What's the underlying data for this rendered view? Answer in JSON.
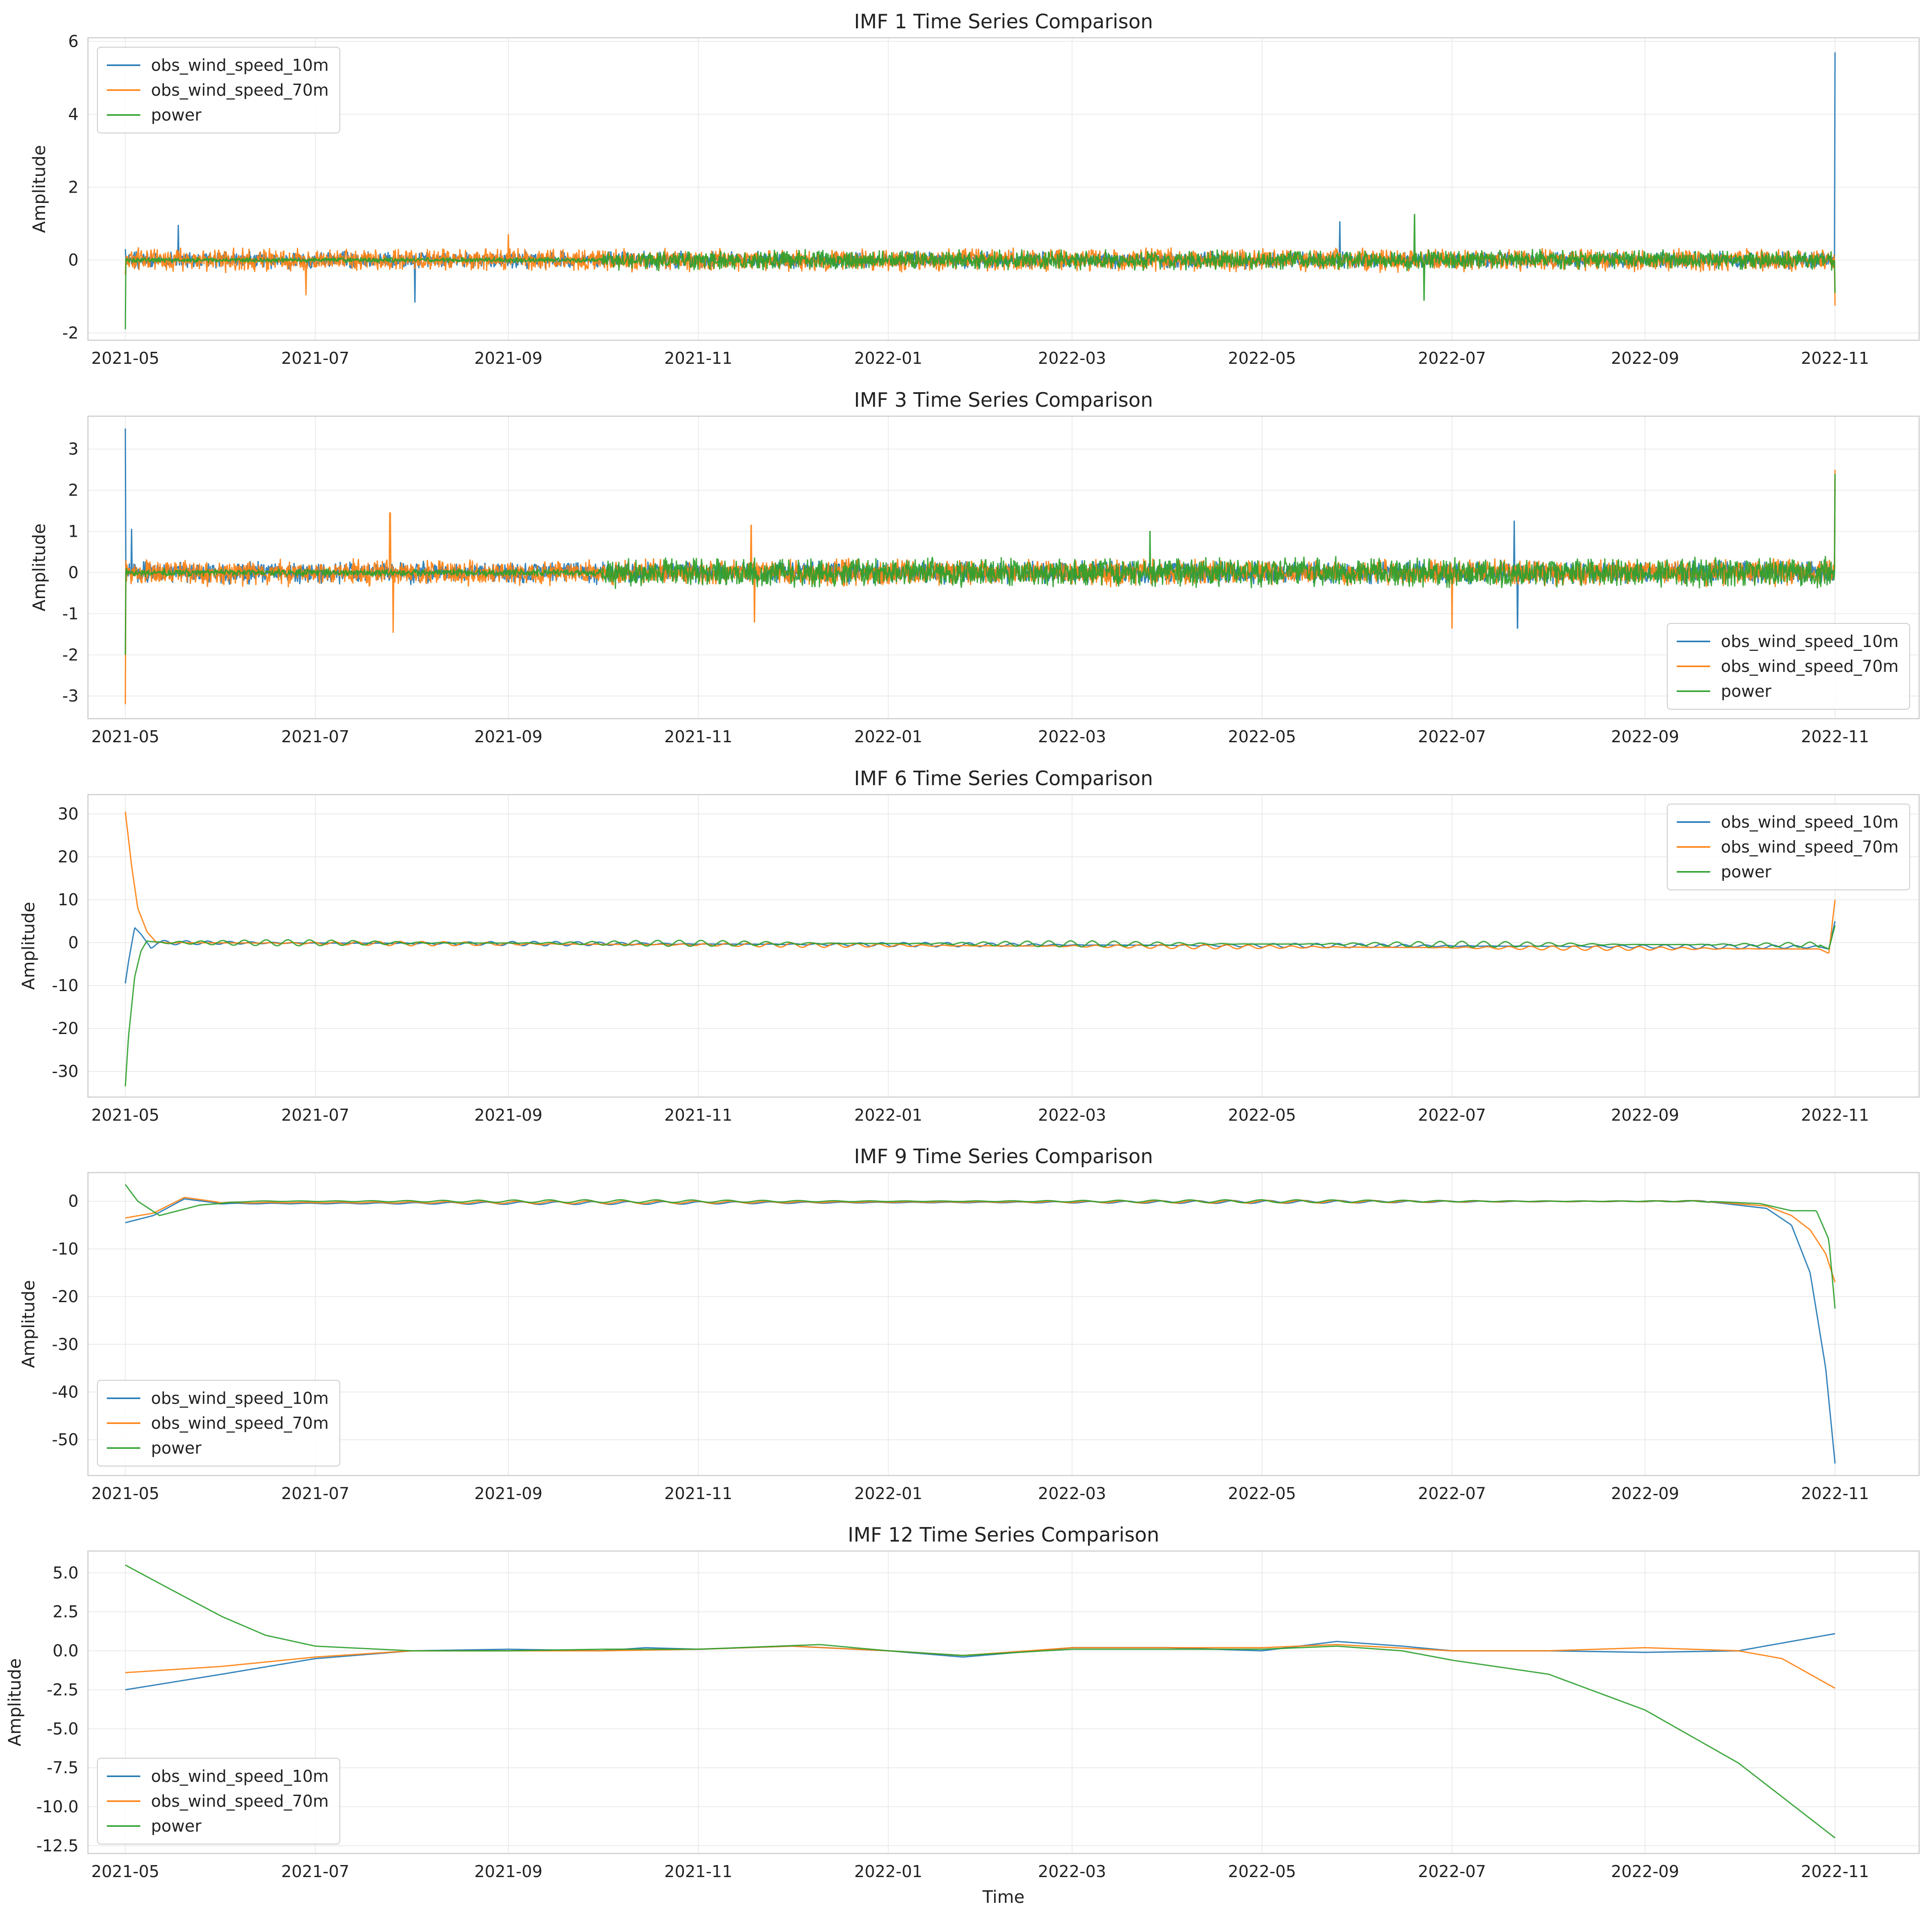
{
  "colors": {
    "obs_wind_speed_10m": "#1f77b4",
    "obs_wind_speed_70m": "#ff7f0e",
    "power": "#2ca02c",
    "grid": "#ebebeb",
    "axes": "#cccccc"
  },
  "x_ticks": [
    "2021-05",
    "2021-07",
    "2021-09",
    "2021-11",
    "2022-01",
    "2022-03",
    "2022-05",
    "2022-07",
    "2022-09",
    "2022-11"
  ],
  "x_label": "Time",
  "chart_data": [
    {
      "type": "line",
      "title": "IMF 1 Time Series Comparison",
      "ylabel": "Amplitude",
      "xlim": [
        "2021-04-19",
        "2022-11-28"
      ],
      "ylim": [
        -2.2,
        6.1
      ],
      "yticks": [
        -2,
        0,
        2,
        4,
        6
      ],
      "ytick_labels": [
        "-2",
        "0",
        "2",
        "4",
        "6"
      ],
      "grid": true,
      "legend": "upper left",
      "style": "noise",
      "series": [
        {
          "name": "obs_wind_speed_10m",
          "amplitude": 0.25,
          "keypoints": [
            [
              "2021-05-01",
              0.3
            ],
            [
              "2021-05-18",
              0.95
            ],
            [
              "2021-08-02",
              -1.15
            ],
            [
              "2022-05-26",
              1.05
            ],
            [
              "2022-11-01",
              5.7
            ]
          ]
        },
        {
          "name": "obs_wind_speed_70m",
          "amplitude": 0.35,
          "keypoints": [
            [
              "2021-05-01",
              -0.4
            ],
            [
              "2021-06-28",
              -0.95
            ],
            [
              "2021-09-01",
              0.7
            ],
            [
              "2022-11-01",
              -1.25
            ]
          ]
        },
        {
          "name": "power",
          "amplitude": 0.3,
          "start": "2021-10-01",
          "keypoints": [
            [
              "2021-05-01",
              -1.9
            ],
            [
              "2022-06-19",
              1.25
            ],
            [
              "2022-06-22",
              -1.1
            ],
            [
              "2022-11-01",
              -0.9
            ]
          ]
        }
      ]
    },
    {
      "type": "line",
      "title": "IMF 3 Time Series Comparison",
      "ylabel": "Amplitude",
      "xlim": [
        "2021-04-19",
        "2022-11-28"
      ],
      "ylim": [
        -3.55,
        3.8
      ],
      "yticks": [
        -3,
        -2,
        -1,
        0,
        1,
        2,
        3
      ],
      "ytick_labels": [
        "-3",
        "-2",
        "-1",
        "0",
        "1",
        "2",
        "3"
      ],
      "grid": true,
      "legend": "lower right",
      "style": "noise",
      "series": [
        {
          "name": "obs_wind_speed_10m",
          "amplitude": 0.3,
          "keypoints": [
            [
              "2021-05-01",
              3.5
            ],
            [
              "2021-05-03",
              1.05
            ],
            [
              "2022-07-21",
              1.25
            ],
            [
              "2022-07-22",
              -1.35
            ],
            [
              "2022-11-01",
              2.4
            ]
          ]
        },
        {
          "name": "obs_wind_speed_70m",
          "amplitude": 0.35,
          "keypoints": [
            [
              "2021-05-01",
              -3.2
            ],
            [
              "2021-07-25",
              1.45
            ],
            [
              "2021-07-26",
              -1.45
            ],
            [
              "2021-11-18",
              1.15
            ],
            [
              "2021-11-19",
              -1.2
            ],
            [
              "2022-07-01",
              -1.35
            ],
            [
              "2022-11-01",
              2.5
            ]
          ]
        },
        {
          "name": "power",
          "amplitude": 0.4,
          "start": "2021-10-01",
          "keypoints": [
            [
              "2021-05-01",
              -2.0
            ],
            [
              "2022-03-26",
              1.0
            ],
            [
              "2022-11-01",
              2.4
            ]
          ]
        }
      ]
    },
    {
      "type": "line",
      "title": "IMF 6 Time Series Comparison",
      "ylabel": "Amplitude",
      "xlim": [
        "2021-04-19",
        "2022-11-28"
      ],
      "ylim": [
        -36,
        34.5
      ],
      "yticks": [
        -30,
        -20,
        -10,
        0,
        10,
        20,
        30
      ],
      "ytick_labels": [
        "-30",
        "-20",
        "-10",
        "0",
        "10",
        "20",
        "30"
      ],
      "grid": true,
      "legend": "upper right",
      "style": "wave",
      "series": [
        {
          "name": "obs_wind_speed_10m",
          "amplitude": 0.5,
          "keypoints": [
            [
              "2021-05-01",
              -9.5
            ],
            [
              "2021-05-02",
              -4.5
            ],
            [
              "2021-05-04",
              3.5
            ],
            [
              "2021-05-06",
              2.0
            ],
            [
              "2021-05-09",
              -1.0
            ],
            [
              "2021-05-11",
              0.0
            ],
            [
              "2022-10-27",
              -1.0
            ],
            [
              "2022-10-30",
              -1.5
            ],
            [
              "2022-11-01",
              5.0
            ]
          ]
        },
        {
          "name": "obs_wind_speed_70m",
          "amplitude": 0.5,
          "keypoints": [
            [
              "2021-05-01",
              30.5
            ],
            [
              "2021-05-03",
              18.0
            ],
            [
              "2021-05-05",
              8.0
            ],
            [
              "2021-05-08",
              2.5
            ],
            [
              "2021-05-11",
              0.0
            ],
            [
              "2022-10-27",
              -1.5
            ],
            [
              "2022-10-30",
              -2.5
            ],
            [
              "2022-11-01",
              10.0
            ]
          ]
        },
        {
          "name": "power",
          "amplitude": 0.7,
          "keypoints": [
            [
              "2021-05-01",
              -33.5
            ],
            [
              "2021-05-02",
              -22.0
            ],
            [
              "2021-05-04",
              -8.0
            ],
            [
              "2021-05-06",
              -2.0
            ],
            [
              "2021-05-08",
              0.5
            ],
            [
              "2021-05-11",
              0.0
            ],
            [
              "2022-10-27",
              -0.5
            ],
            [
              "2022-10-30",
              -1.5
            ],
            [
              "2022-11-01",
              4.0
            ]
          ]
        }
      ]
    },
    {
      "type": "line",
      "title": "IMF 9 Time Series Comparison",
      "ylabel": "Amplitude",
      "xlim": [
        "2021-04-19",
        "2022-11-28"
      ],
      "ylim": [
        -57.5,
        6
      ],
      "yticks": [
        -50,
        -40,
        -30,
        -20,
        -10,
        0
      ],
      "ytick_labels": [
        "-50",
        "-40",
        "-30",
        "-20",
        "-10",
        "0"
      ],
      "grid": true,
      "legend": "lower left",
      "style": "smooth",
      "series": [
        {
          "name": "obs_wind_speed_10m",
          "amplitude": 0.3,
          "keypoints": [
            [
              "2021-05-01",
              -4.5
            ],
            [
              "2021-05-10",
              -3.0
            ],
            [
              "2021-05-20",
              0.5
            ],
            [
              "2021-06-01",
              -0.5
            ],
            [
              "2022-09-20",
              0.0
            ],
            [
              "2022-10-10",
              -1.5
            ],
            [
              "2022-10-18",
              -5.0
            ],
            [
              "2022-10-24",
              -15.0
            ],
            [
              "2022-10-29",
              -35.0
            ],
            [
              "2022-11-01",
              -55.0
            ]
          ]
        },
        {
          "name": "obs_wind_speed_70m",
          "amplitude": 0.3,
          "keypoints": [
            [
              "2021-05-01",
              -3.5
            ],
            [
              "2021-05-10",
              -2.5
            ],
            [
              "2021-05-20",
              0.8
            ],
            [
              "2021-06-01",
              -0.3
            ],
            [
              "2022-09-20",
              0.0
            ],
            [
              "2022-10-10",
              -1.0
            ],
            [
              "2022-10-18",
              -3.0
            ],
            [
              "2022-10-24",
              -6.0
            ],
            [
              "2022-10-29",
              -11.0
            ],
            [
              "2022-11-01",
              -17.0
            ]
          ]
        },
        {
          "name": "power",
          "amplitude": 0.3,
          "keypoints": [
            [
              "2021-05-01",
              3.5
            ],
            [
              "2021-05-05",
              0.0
            ],
            [
              "2021-05-12",
              -3.0
            ],
            [
              "2021-05-25",
              -0.8
            ],
            [
              "2021-06-10",
              0.0
            ],
            [
              "2022-09-20",
              0.0
            ],
            [
              "2022-10-08",
              -0.5
            ],
            [
              "2022-10-18",
              -2.0
            ],
            [
              "2022-10-26",
              -2.0
            ],
            [
              "2022-10-30",
              -8.0
            ],
            [
              "2022-11-01",
              -22.5
            ]
          ]
        }
      ]
    },
    {
      "type": "line",
      "title": "IMF 12 Time Series Comparison",
      "ylabel": "Amplitude",
      "xlabel": "Time",
      "xlim": [
        "2021-04-19",
        "2022-11-28"
      ],
      "ylim": [
        -13.0,
        6.4
      ],
      "yticks": [
        -12.5,
        -10.0,
        -7.5,
        -5.0,
        -2.5,
        0.0,
        2.5,
        5.0
      ],
      "ytick_labels": [
        "-12.5",
        "-10.0",
        "-7.5",
        "-5.0",
        "-2.5",
        "0.0",
        "2.5",
        "5.0"
      ],
      "grid": true,
      "legend": "lower left",
      "style": "smooth",
      "series": [
        {
          "name": "obs_wind_speed_10m",
          "amplitude": 0,
          "keypoints": [
            [
              "2021-05-01",
              -2.5
            ],
            [
              "2021-06-01",
              -1.5
            ],
            [
              "2021-07-01",
              -0.5
            ],
            [
              "2021-08-01",
              0.0
            ],
            [
              "2021-09-01",
              0.1
            ],
            [
              "2021-10-01",
              0.0
            ],
            [
              "2021-10-15",
              0.2
            ],
            [
              "2021-11-01",
              0.1
            ],
            [
              "2021-12-01",
              0.3
            ],
            [
              "2022-01-01",
              0.0
            ],
            [
              "2022-01-25",
              -0.4
            ],
            [
              "2022-03-01",
              0.2
            ],
            [
              "2022-04-01",
              0.2
            ],
            [
              "2022-05-01",
              0.0
            ],
            [
              "2022-05-25",
              0.6
            ],
            [
              "2022-06-15",
              0.3
            ],
            [
              "2022-07-01",
              0.0
            ],
            [
              "2022-08-01",
              0.0
            ],
            [
              "2022-09-01",
              -0.1
            ],
            [
              "2022-10-01",
              0.0
            ],
            [
              "2022-11-01",
              1.1
            ]
          ]
        },
        {
          "name": "obs_wind_speed_70m",
          "amplitude": 0,
          "keypoints": [
            [
              "2021-05-01",
              -1.4
            ],
            [
              "2021-06-01",
              -1.0
            ],
            [
              "2021-07-01",
              -0.4
            ],
            [
              "2021-08-01",
              0.0
            ],
            [
              "2021-09-01",
              0.0
            ],
            [
              "2021-10-01",
              0.0
            ],
            [
              "2021-11-01",
              0.1
            ],
            [
              "2021-12-01",
              0.3
            ],
            [
              "2022-01-01",
              0.0
            ],
            [
              "2022-01-25",
              -0.3
            ],
            [
              "2022-03-01",
              0.2
            ],
            [
              "2022-04-01",
              0.2
            ],
            [
              "2022-05-01",
              0.2
            ],
            [
              "2022-05-25",
              0.4
            ],
            [
              "2022-07-01",
              0.0
            ],
            [
              "2022-08-01",
              0.0
            ],
            [
              "2022-09-01",
              0.2
            ],
            [
              "2022-10-01",
              0.0
            ],
            [
              "2022-10-15",
              -0.5
            ],
            [
              "2022-11-01",
              -2.4
            ]
          ]
        },
        {
          "name": "power",
          "amplitude": 0,
          "keypoints": [
            [
              "2021-05-01",
              5.5
            ],
            [
              "2021-05-15",
              4.0
            ],
            [
              "2021-06-01",
              2.2
            ],
            [
              "2021-06-15",
              1.0
            ],
            [
              "2021-07-01",
              0.3
            ],
            [
              "2021-08-01",
              0.0
            ],
            [
              "2021-09-01",
              0.0
            ],
            [
              "2021-10-01",
              0.1
            ],
            [
              "2021-11-01",
              0.1
            ],
            [
              "2021-12-10",
              0.4
            ],
            [
              "2022-01-01",
              0.0
            ],
            [
              "2022-01-25",
              -0.3
            ],
            [
              "2022-03-01",
              0.1
            ],
            [
              "2022-04-01",
              0.1
            ],
            [
              "2022-05-01",
              0.1
            ],
            [
              "2022-05-25",
              0.3
            ],
            [
              "2022-06-15",
              0.0
            ],
            [
              "2022-07-01",
              -0.6
            ],
            [
              "2022-08-01",
              -1.5
            ],
            [
              "2022-09-01",
              -3.8
            ],
            [
              "2022-10-01",
              -7.2
            ],
            [
              "2022-11-01",
              -12.0
            ]
          ]
        }
      ]
    }
  ]
}
